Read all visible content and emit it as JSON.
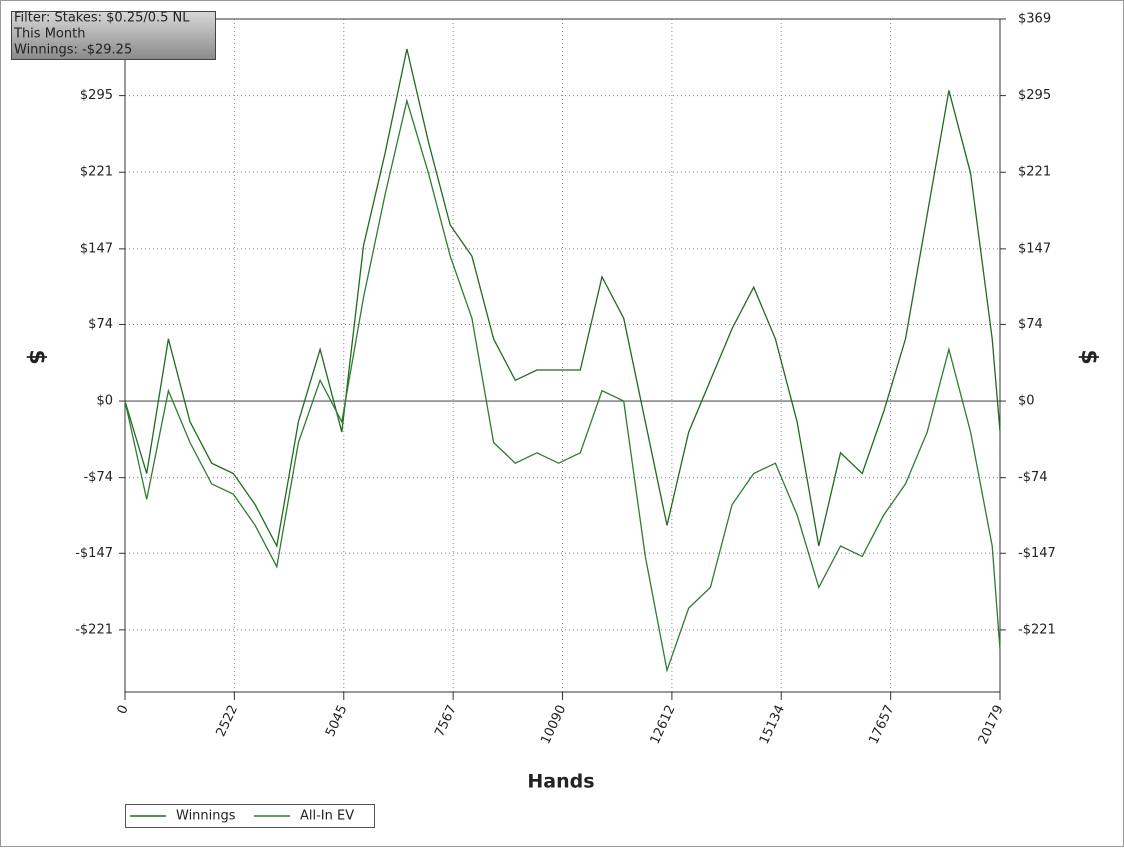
{
  "chart_data": {
    "type": "line",
    "filter_text": [
      "Filter: Stakes: $0.25/0.5 NL",
      "This Month",
      "Winnings: -$29.25"
    ],
    "xlabel": "Hands",
    "ylabel": "$",
    "y2label": "$",
    "x": [
      0,
      500,
      1000,
      1500,
      2000,
      2500,
      3000,
      3500,
      4000,
      4500,
      5000,
      5500,
      6000,
      6500,
      7000,
      7500,
      8000,
      8500,
      9000,
      9500,
      10000,
      10500,
      11000,
      11500,
      12000,
      12500,
      13000,
      13500,
      14000,
      14500,
      15000,
      15500,
      16000,
      16500,
      17000,
      17500,
      18000,
      18500,
      19000,
      19500,
      20000,
      20179
    ],
    "series": [
      {
        "name": "Winnings",
        "color": "#1f6b1f",
        "values": [
          0,
          -70,
          60,
          -20,
          -60,
          -70,
          -100,
          -140,
          -20,
          50,
          -30,
          150,
          240,
          340,
          250,
          170,
          140,
          60,
          20,
          30,
          30,
          30,
          120,
          80,
          -20,
          -120,
          -30,
          20,
          70,
          110,
          60,
          -20,
          -140,
          -50,
          -70,
          -10,
          60,
          180,
          300,
          220,
          60,
          -29.25
        ]
      },
      {
        "name": "All-In EV",
        "color": "#2e7d32",
        "values": [
          0,
          -95,
          10,
          -40,
          -80,
          -90,
          -120,
          -160,
          -40,
          20,
          -20,
          100,
          200,
          290,
          220,
          140,
          80,
          -40,
          -60,
          -50,
          -60,
          -50,
          10,
          0,
          -150,
          -260,
          -200,
          -180,
          -100,
          -70,
          -60,
          -110,
          -180,
          -140,
          -150,
          -110,
          -80,
          -30,
          50,
          -30,
          -140,
          -240
        ]
      }
    ],
    "xlim": [
      0,
      20179
    ],
    "xticks": [
      0,
      2522,
      5045,
      7567,
      10090,
      12612,
      15134,
      17657,
      20179
    ],
    "ylim": [
      -281,
      369
    ],
    "yticks": [
      {
        "value": -221,
        "label": "-$221"
      },
      {
        "value": -147,
        "label": "-$147"
      },
      {
        "value": -74,
        "label": "-$74"
      },
      {
        "value": 0,
        "label": "$0"
      },
      {
        "value": 74,
        "label": "$74"
      },
      {
        "value": 147,
        "label": "$147"
      },
      {
        "value": 221,
        "label": "$221"
      },
      {
        "value": 295,
        "label": "$295"
      },
      {
        "value": 369,
        "label": "$369"
      }
    ],
    "grid": true
  }
}
